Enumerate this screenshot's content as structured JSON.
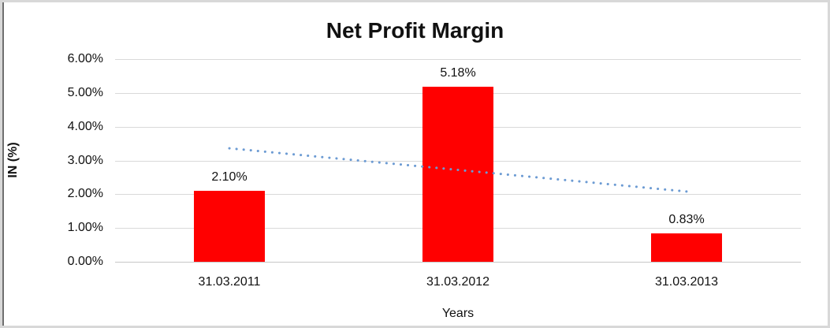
{
  "chart_data": {
    "type": "bar",
    "title": "Net Profit Margin",
    "categories": [
      "31.03.2011",
      "31.03.2012",
      "31.03.2013"
    ],
    "values": [
      2.1,
      5.18,
      0.83
    ],
    "data_labels": [
      "2.10%",
      "5.18%",
      "0.83%"
    ],
    "xlabel": "Years",
    "ylabel": "IN (%)",
    "ylim": [
      0,
      6
    ],
    "ytick_labels": [
      "0.00%",
      "1.00%",
      "2.00%",
      "3.00%",
      "4.00%",
      "5.00%",
      "6.00%"
    ],
    "grid": true,
    "legend": "none",
    "bar_color": "#FF0000",
    "gridline_color": "#D9D9D9",
    "trendline": {
      "type": "linear",
      "style": "dotted",
      "color": "#6C9BD3",
      "start_value": 3.36,
      "end_value": 2.08
    }
  }
}
